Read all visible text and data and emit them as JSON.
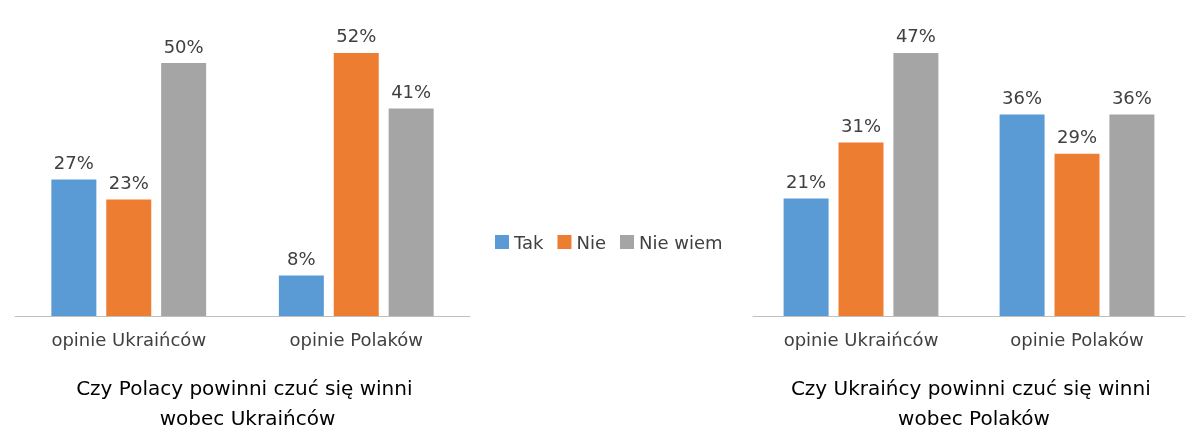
{
  "chart_data": [
    {
      "type": "bar",
      "title": "Czy Polacy powinni czuć się winni wobec Ukraińców",
      "categories": [
        "opinie Ukraińców",
        "opinie Polaków"
      ],
      "legend": "right",
      "series": [
        {
          "name": "Tak",
          "color": "#5b9bd5",
          "values": [
            27,
            8
          ],
          "value_labels": [
            "27%",
            "8%"
          ]
        },
        {
          "name": "Nie",
          "color": "#ed7d31",
          "values": [
            23,
            52
          ],
          "value_labels": [
            "23%",
            "52%"
          ]
        },
        {
          "name": "Nie wiem",
          "color": "#a5a5a5",
          "values": [
            50,
            41
          ],
          "value_labels": [
            "50%",
            "41%"
          ]
        }
      ]
    },
    {
      "type": "bar",
      "title": "Czy Ukraińcy powinni czuć się winni wobec Polaków",
      "categories": [
        "opinie Ukraińców",
        "opinie Polaków"
      ],
      "series": [
        {
          "color": "#5b9bd5",
          "values": [
            21,
            36
          ],
          "value_labels": [
            "21%",
            "36%"
          ]
        },
        {
          "color": "#ed7d31",
          "values": [
            31,
            29
          ],
          "value_labels": [
            "31%",
            "29%"
          ]
        },
        {
          "color": "#a5a5a5",
          "values": [
            47,
            36
          ],
          "value_labels": [
            "47%",
            "36%"
          ]
        }
      ]
    }
  ]
}
